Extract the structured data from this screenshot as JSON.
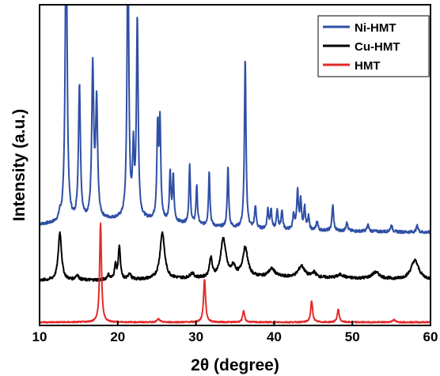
{
  "chart_data": {
    "type": "line",
    "title": "",
    "xlabel": "2θ (degree)",
    "ylabel": "Intensity (a.u.)",
    "xlim": [
      10,
      60
    ],
    "ylim": [
      0,
      100
    ],
    "xticks": [
      "10",
      "20",
      "30",
      "40",
      "50",
      "60"
    ],
    "yticks_shown": false,
    "grid": false,
    "legend_position": "top-right",
    "series": [
      {
        "name": "Ni-HMT",
        "color": "#2f4fa6",
        "baseline": 31,
        "offset_y": 0,
        "peaks": [
          [
            12.6,
            2.0,
            0.15
          ],
          [
            13.4,
            95.0,
            0.15
          ],
          [
            15.1,
            42.0,
            0.15
          ],
          [
            16.8,
            47.0,
            0.15
          ],
          [
            17.3,
            36.0,
            0.15
          ],
          [
            21.3,
            90.0,
            0.13
          ],
          [
            22.0,
            20.0,
            0.12
          ],
          [
            22.5,
            62.0,
            0.13
          ],
          [
            25.1,
            28.0,
            0.12
          ],
          [
            25.4,
            30.0,
            0.12
          ],
          [
            26.7,
            15.0,
            0.11
          ],
          [
            27.1,
            14.0,
            0.11
          ],
          [
            29.2,
            18.0,
            0.11
          ],
          [
            30.1,
            12.0,
            0.11
          ],
          [
            31.7,
            17.0,
            0.11
          ],
          [
            34.1,
            19.0,
            0.11
          ],
          [
            36.3,
            53.0,
            0.12
          ],
          [
            37.6,
            7.0,
            0.12
          ],
          [
            39.2,
            6.0,
            0.12
          ],
          [
            39.6,
            6.0,
            0.12
          ],
          [
            40.4,
            6.0,
            0.12
          ],
          [
            41.0,
            6.0,
            0.12
          ],
          [
            42.5,
            5.0,
            0.12
          ],
          [
            43.0,
            12.0,
            0.12
          ],
          [
            43.4,
            9.0,
            0.12
          ],
          [
            43.9,
            7.0,
            0.12
          ],
          [
            44.4,
            4.0,
            0.12
          ],
          [
            45.5,
            3.0,
            0.12
          ],
          [
            47.5,
            8.0,
            0.12
          ],
          [
            49.3,
            3.0,
            0.12
          ],
          [
            52.0,
            2.0,
            0.15
          ],
          [
            55.0,
            2.0,
            0.15
          ],
          [
            58.3,
            2.0,
            0.15
          ]
        ]
      },
      {
        "name": "Cu-HMT",
        "color": "#000000",
        "baseline": 14,
        "offset_y": 0,
        "peaks": [
          [
            12.6,
            15.0,
            0.25
          ],
          [
            14.8,
            1.5,
            0.25
          ],
          [
            18.8,
            1.5,
            0.2
          ],
          [
            19.7,
            4.5,
            0.15
          ],
          [
            20.2,
            10.5,
            0.15
          ],
          [
            21.5,
            2.0,
            0.2
          ],
          [
            25.7,
            14.5,
            0.35
          ],
          [
            29.5,
            1.5,
            0.3
          ],
          [
            31.9,
            6.0,
            0.2
          ],
          [
            33.5,
            12.0,
            0.4
          ],
          [
            34.8,
            3.0,
            0.3
          ],
          [
            36.3,
            9.0,
            0.4
          ],
          [
            39.7,
            2.5,
            0.5
          ],
          [
            43.5,
            3.5,
            0.5
          ],
          [
            45.1,
            1.5,
            0.3
          ],
          [
            48.5,
            1.0,
            0.5
          ],
          [
            53.0,
            2.0,
            0.6
          ],
          [
            58.0,
            6.0,
            0.6
          ]
        ]
      },
      {
        "name": "HMT",
        "color": "#e32b2b",
        "baseline": 1,
        "offset_y": 0,
        "peaks": [
          [
            17.8,
            31.0,
            0.14
          ],
          [
            25.2,
            1.0,
            0.2
          ],
          [
            31.1,
            13.5,
            0.15
          ],
          [
            36.1,
            3.5,
            0.15
          ],
          [
            44.8,
            6.5,
            0.15
          ],
          [
            48.2,
            4.0,
            0.15
          ],
          [
            55.3,
            0.8,
            0.2
          ]
        ]
      }
    ]
  },
  "legend": {
    "items": [
      {
        "label": "Ni-HMT",
        "color": "#2f4fa6"
      },
      {
        "label": "Cu-HMT",
        "color": "#000000"
      },
      {
        "label": "HMT",
        "color": "#e32b2b"
      }
    ]
  }
}
